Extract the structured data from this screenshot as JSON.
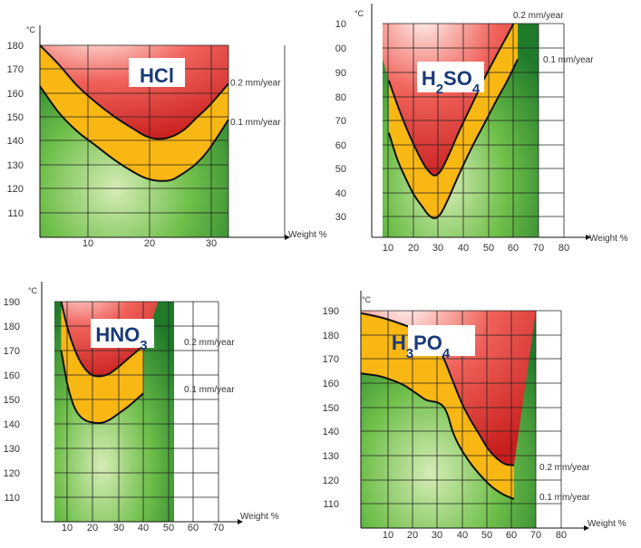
{
  "chart_data": [
    {
      "type": "area",
      "title": "HCl",
      "title_parts": [
        {
          "text": "HCl",
          "sub": false
        }
      ],
      "xlabel": "Weight %",
      "ylabel": "°C",
      "xlim": [
        2,
        32
      ],
      "ylim": [
        100,
        180
      ],
      "x_ticks": [
        "10",
        "20",
        "30"
      ],
      "y_ticks": [
        "110",
        "120",
        "130",
        "140",
        "150",
        "160",
        "170",
        "180"
      ],
      "series": [
        {
          "name": "0.2 mm/year",
          "points": [
            [
              2,
              180
            ],
            [
              5,
              172
            ],
            [
              8,
              163
            ],
            [
              11,
              156
            ],
            [
              14,
              150
            ],
            [
              17,
              145
            ],
            [
              19,
              142
            ],
            [
              21,
              141
            ],
            [
              23,
              142
            ],
            [
              25,
              145
            ],
            [
              27,
              150
            ],
            [
              29,
              155
            ],
            [
              32,
              164
            ]
          ]
        },
        {
          "name": "0.1 mm/year",
          "points": [
            [
              2,
              163
            ],
            [
              5,
              152
            ],
            [
              8,
              144
            ],
            [
              11,
              138
            ],
            [
              14,
              132
            ],
            [
              17,
              127
            ],
            [
              19,
              124.5
            ],
            [
              21,
              123.5
            ],
            [
              23,
              124
            ],
            [
              25,
              127
            ],
            [
              27,
              131
            ],
            [
              29,
              137
            ],
            [
              32,
              149
            ]
          ]
        }
      ]
    },
    {
      "type": "area",
      "title": "H2SO4",
      "title_parts": [
        {
          "text": "H",
          "sub": false
        },
        {
          "text": "2",
          "sub": true
        },
        {
          "text": "SO",
          "sub": false
        },
        {
          "text": "4",
          "sub": true
        }
      ],
      "xlabel": "Weight %",
      "ylabel": "°C",
      "xlim": [
        5,
        80
      ],
      "ylim": [
        20,
        110
      ],
      "x_ticks": [
        "10",
        "20",
        "30",
        "40",
        "50",
        "60",
        "70",
        "80"
      ],
      "y_ticks": [
        "30",
        "40",
        "50",
        "60",
        "70",
        "80",
        "90",
        "00",
        "10"
      ],
      "series": [
        {
          "name": "0.2 mm/year",
          "points": [
            [
              8,
              86
            ],
            [
              12,
              76
            ],
            [
              16,
              67
            ],
            [
              20,
              59
            ],
            [
              24,
              52
            ],
            [
              27,
              48
            ],
            [
              30,
              46
            ],
            [
              33,
              48
            ],
            [
              37,
              55
            ],
            [
              42,
              65
            ],
            [
              48,
              76
            ],
            [
              54,
              87
            ],
            [
              60,
              97
            ],
            [
              65,
              105
            ],
            [
              68,
              110
            ]
          ]
        },
        {
          "name": "0.1 mm/year",
          "points": [
            [
              8,
              64
            ],
            [
              12,
              53
            ],
            [
              16,
              45
            ],
            [
              20,
              38
            ],
            [
              24,
              33
            ],
            [
              27,
              29.5
            ],
            [
              30,
              28
            ],
            [
              33,
              30
            ],
            [
              37,
              37
            ],
            [
              42,
              47
            ],
            [
              48,
              58
            ],
            [
              54,
              68
            ],
            [
              60,
              78
            ],
            [
              65,
              86
            ],
            [
              70,
              95
            ]
          ]
        }
      ]
    },
    {
      "type": "area",
      "title": "HNO3",
      "title_parts": [
        {
          "text": "HNO",
          "sub": false
        },
        {
          "text": "3",
          "sub": true
        }
      ],
      "xlabel": "Weight %",
      "ylabel": "°C",
      "xlim": [
        0,
        70
      ],
      "ylim": [
        100,
        190
      ],
      "x_ticks": [
        "10",
        "20",
        "30",
        "40",
        "50",
        "60",
        "70"
      ],
      "y_ticks": [
        "110",
        "120",
        "130",
        "140",
        "150",
        "160",
        "170",
        "180",
        "190"
      ],
      "series": [
        {
          "name": "0.2 mm/year",
          "points": [
            [
              4,
              190
            ],
            [
              7,
              181
            ],
            [
              10,
              174
            ],
            [
              14,
              167
            ],
            [
              18,
              162.5
            ],
            [
              22,
              160
            ],
            [
              27,
              159.5
            ],
            [
              32,
              160.5
            ],
            [
              37,
              163
            ],
            [
              42,
              166
            ],
            [
              47,
              169
            ],
            [
              52,
              172
            ]
          ]
        },
        {
          "name": "0.1 mm/year",
          "points": [
            [
              4,
              170
            ],
            [
              6,
              162
            ],
            [
              8,
              155
            ],
            [
              11,
              148
            ],
            [
              14,
              144
            ],
            [
              18,
              141.5
            ],
            [
              23,
              140.5
            ],
            [
              28,
              140.5
            ],
            [
              33,
              142
            ],
            [
              38,
              144.5
            ],
            [
              43,
              147
            ],
            [
              48,
              150
            ],
            [
              52,
              152.5
            ]
          ]
        }
      ]
    },
    {
      "type": "area",
      "title": "H3PO4",
      "title_parts": [
        {
          "text": "H",
          "sub": false
        },
        {
          "text": "3",
          "sub": true
        },
        {
          "text": "PO",
          "sub": false
        },
        {
          "text": "4",
          "sub": true
        }
      ],
      "xlabel": "Weight %",
      "ylabel": "°C",
      "xlim": [
        0,
        80
      ],
      "ylim": [
        100,
        190
      ],
      "x_ticks": [
        "10",
        "20",
        "30",
        "40",
        "50",
        "60",
        "70",
        "80"
      ],
      "y_ticks": [
        "110",
        "120",
        "130",
        "140",
        "150",
        "160",
        "170",
        "180",
        "190"
      ],
      "series": [
        {
          "name": "0.2 mm/year",
          "points": [
            [
              0,
              189
            ],
            [
              10,
              187
            ],
            [
              20,
              184
            ],
            [
              28,
              181
            ],
            [
              34,
              177
            ],
            [
              38,
              170
            ],
            [
              42,
              161
            ],
            [
              46,
              152
            ],
            [
              50,
              145
            ],
            [
              54,
              139
            ],
            [
              58,
              133
            ],
            [
              62,
              129
            ],
            [
              66,
              126.5
            ],
            [
              70,
              126
            ]
          ]
        },
        {
          "name": "0.1 mm/year",
          "points": [
            [
              0,
              164
            ],
            [
              8,
              163
            ],
            [
              15,
              161
            ],
            [
              20,
              159
            ],
            [
              25,
              156
            ],
            [
              30,
              153
            ],
            [
              35,
              152
            ],
            [
              38,
              150
            ],
            [
              40,
              146
            ],
            [
              42,
              140
            ],
            [
              45,
              134
            ],
            [
              50,
              127
            ],
            [
              55,
              121.5
            ],
            [
              60,
              117
            ],
            [
              65,
              114
            ],
            [
              70,
              112
            ]
          ]
        }
      ]
    }
  ]
}
